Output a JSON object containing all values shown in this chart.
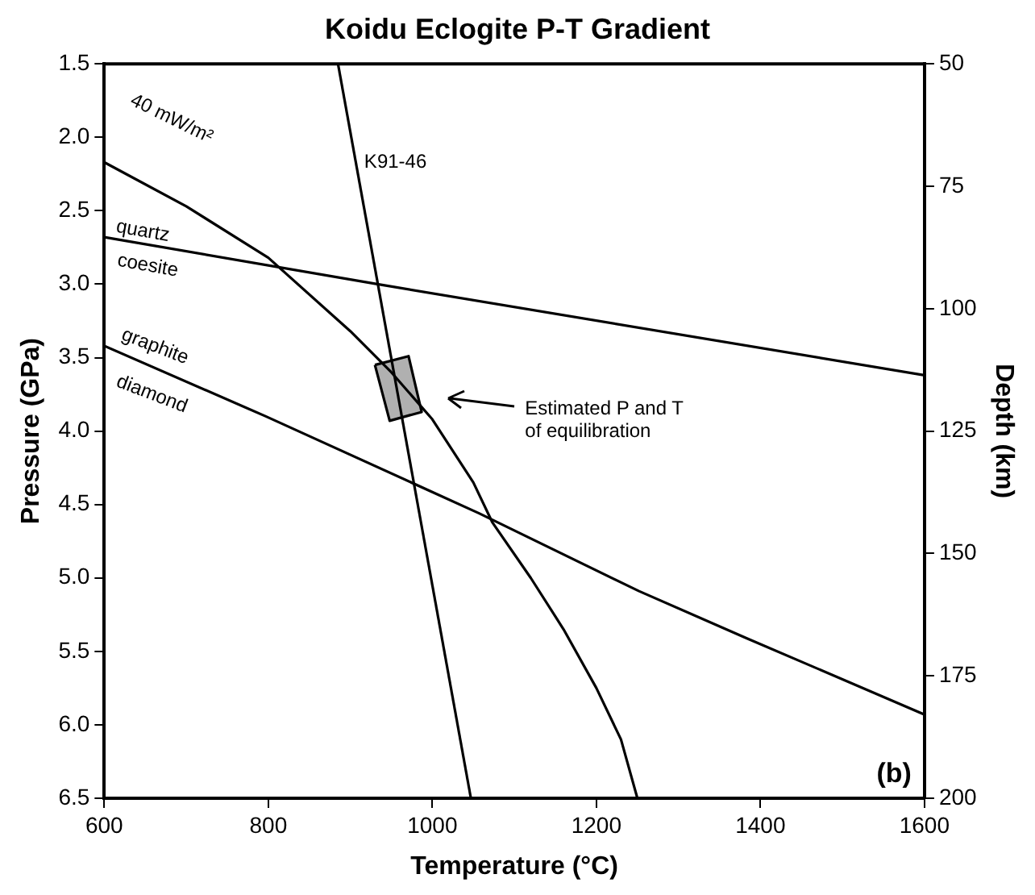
{
  "chart_data": {
    "type": "line",
    "title": "Koidu Eclogite P-T Gradient",
    "xlabel": "Temperature (°C)",
    "ylabel": "Pressure (GPa)",
    "y2label": "Depth (km)",
    "xlim": [
      600,
      1600
    ],
    "xticks": [
      600,
      800,
      1000,
      1200,
      1400,
      1600
    ],
    "ylim": [
      6.5,
      1.5
    ],
    "yticks": [
      1.5,
      {
        "value": 2,
        "label": "2.0"
      },
      2.5,
      {
        "value": 3,
        "label": "3.0"
      },
      3.5,
      {
        "value": 4,
        "label": "4.0"
      },
      4.5,
      {
        "value": 5,
        "label": "5.0"
      },
      5.5,
      {
        "value": 6,
        "label": "6.0"
      },
      6.5
    ],
    "y2lim": [
      200,
      50
    ],
    "y2ticks": [
      50,
      75,
      100,
      125,
      150,
      175,
      200
    ],
    "grid": false,
    "legend": false,
    "marker": "none",
    "line_style": "solid",
    "series": [
      {
        "color": "#000000",
        "x": [
          600,
          700,
          800,
          900,
          950,
          1000,
          1050,
          1073,
          1120,
          1160,
          1200,
          1230,
          1250
        ],
        "values": [
          2.17,
          2.47,
          2.82,
          3.32,
          3.6,
          3.92,
          4.35,
          4.62,
          5.0,
          5.35,
          5.75,
          6.1,
          6.5
        ]
      },
      {
        "color": "#000000",
        "x": [
          600,
          933,
          1600
        ],
        "values": [
          2.68,
          3.0,
          3.62
        ]
      },
      {
        "color": "#000000",
        "x": [
          600,
          797,
          1057,
          1252,
          1383,
          1600
        ],
        "values": [
          3.42,
          3.9,
          4.56,
          5.09,
          5.41,
          5.93
        ]
      },
      {
        "color": "#000000",
        "x": [
          885,
          1047
        ],
        "values": [
          1.5,
          6.5
        ]
      },
      {
        "type": "area",
        "color": "#b0b0b0",
        "x": [
          930,
          971,
          987,
          948,
          930
        ],
        "values": [
          3.55,
          3.49,
          3.87,
          3.93,
          3.55
        ]
      }
    ],
    "annotations": [
      "40 mW/m²",
      "quartz",
      "coesite",
      "graphite",
      "diamond",
      "K91-46",
      "Estimated P and T\nof equilibration",
      "(b)"
    ]
  }
}
